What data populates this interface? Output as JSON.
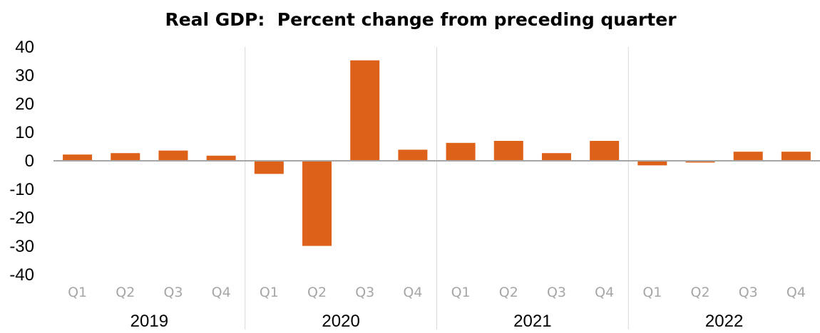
{
  "chart_data": {
    "type": "bar",
    "title": "Real GDP:  Percent change from preceding quarter",
    "xlabel": "",
    "ylabel": "",
    "ylim": [
      -40,
      40
    ],
    "yticks": [
      "40",
      "30",
      "20",
      "10",
      "0",
      "-10",
      "-20",
      "-30",
      "-40"
    ],
    "grid": false,
    "groups": [
      {
        "label": "2019",
        "categories": [
          "Q1",
          "Q2",
          "Q3",
          "Q4"
        ],
        "values": [
          2.2,
          2.7,
          3.6,
          1.8
        ]
      },
      {
        "label": "2020",
        "categories": [
          "Q1",
          "Q2",
          "Q3",
          "Q4"
        ],
        "values": [
          -4.6,
          -29.9,
          35.3,
          3.9
        ]
      },
      {
        "label": "2021",
        "categories": [
          "Q1",
          "Q2",
          "Q3",
          "Q4"
        ],
        "values": [
          6.3,
          7.0,
          2.7,
          7.0
        ]
      },
      {
        "label": "2022",
        "categories": [
          "Q1",
          "Q2",
          "Q3",
          "Q4"
        ],
        "values": [
          -1.6,
          -0.6,
          3.2,
          3.2
        ]
      }
    ],
    "colors": {
      "bar": "#dd6119",
      "zero_line": "#a6a6a6",
      "separator": "#d9d9d9",
      "quarter_label": "#a6a6a6"
    }
  }
}
